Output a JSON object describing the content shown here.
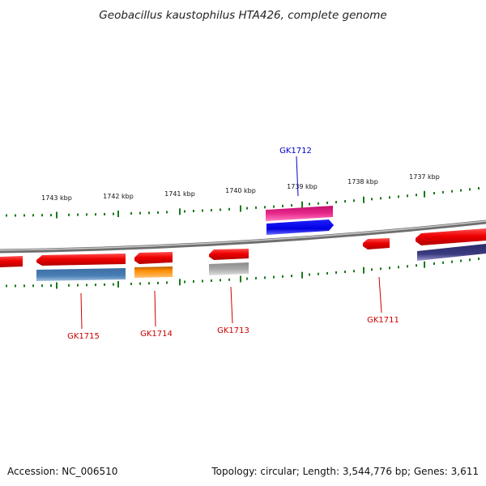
{
  "title": "Geobacillus kaustophilus HTA426, complete genome",
  "footer": {
    "accession": "Accession: NC_006510",
    "summary": "Topology: circular; Length: 3,544,776 bp; Genes: 3,611"
  },
  "scale_labels": [
    "1743 kbp",
    "1742 kbp",
    "1741 kbp",
    "1740 kbp",
    "1739 kbp",
    "1738 kbp",
    "1737 kbp"
  ],
  "genes": [
    {
      "label": "GK1715",
      "color": "#cc0000"
    },
    {
      "label": "GK1714",
      "color": "#cc0000"
    },
    {
      "label": "GK1713",
      "color": "#cc0000"
    },
    {
      "label": "GK1712",
      "color": "#0000cc"
    },
    {
      "label": "GK1711",
      "color": "#cc0000"
    }
  ],
  "colors": {
    "forward_gene": "#ee0000",
    "backbone": "#888888",
    "tick": "#1a7a1a",
    "magenta_feature": "#e8288c",
    "blue_feature": "#0000ee",
    "steel_blue_feature": "#4a7fb5",
    "orange_feature": "#ff8c00",
    "gray_feature": "#a8a8a8",
    "indigo_feature": "#3a3a80"
  }
}
